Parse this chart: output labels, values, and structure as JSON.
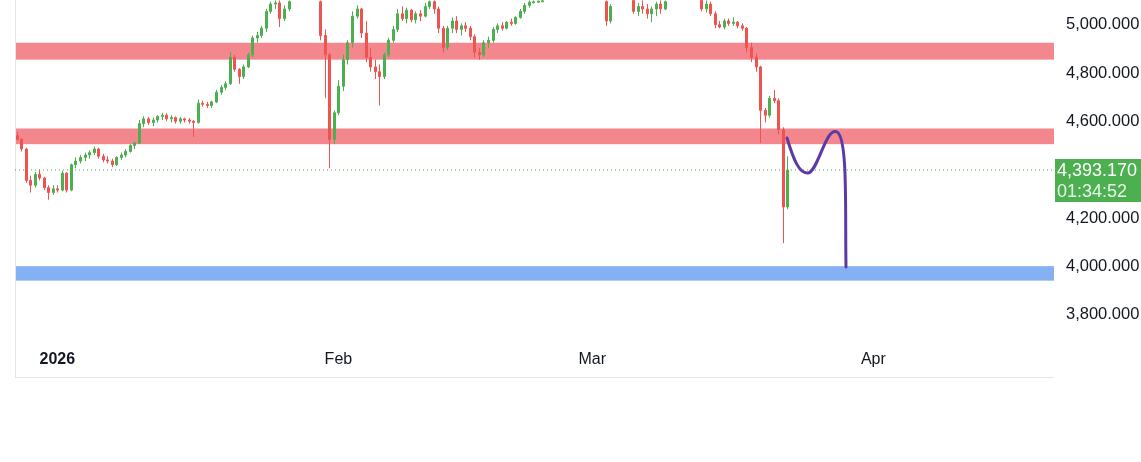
{
  "chart_data": {
    "type": "candlestick",
    "x": [
      "2025-12-27T12:00",
      "2025-12-28T00:00",
      "2025-12-28T12:00",
      "2025-12-29T00:00",
      "2025-12-29T12:00",
      "2025-12-30T00:00",
      "2025-12-30T12:00",
      "2025-12-31T00:00",
      "2025-12-31T12:00",
      "2026-01-01T00:00",
      "2026-01-01T12:00",
      "2026-01-02T00:00",
      "2026-01-02T12:00",
      "2026-01-03T00:00",
      "2026-01-03T12:00",
      "2026-01-04T00:00",
      "2026-01-04T12:00",
      "2026-01-05T00:00",
      "2026-01-05T12:00",
      "2026-01-06T00:00",
      "2026-01-06T12:00",
      "2026-01-07T00:00",
      "2026-01-07T12:00",
      "2026-01-08T00:00",
      "2026-01-08T12:00",
      "2026-01-09T00:00",
      "2026-01-09T12:00",
      "2026-01-10T00:00",
      "2026-01-10T12:00",
      "2026-01-11T00:00",
      "2026-01-11T12:00",
      "2026-01-12T00:00",
      "2026-01-12T12:00",
      "2026-01-13T00:00",
      "2026-01-13T12:00",
      "2026-01-14T00:00",
      "2026-01-14T12:00",
      "2026-01-15T00:00",
      "2026-01-15T12:00",
      "2026-01-16T00:00",
      "2026-01-16T12:00",
      "2026-01-17T00:00",
      "2026-01-17T12:00",
      "2026-01-18T00:00",
      "2026-01-18T12:00",
      "2026-01-19T00:00",
      "2026-01-19T12:00",
      "2026-01-20T00:00",
      "2026-01-20T12:00",
      "2026-01-21T00:00",
      "2026-01-21T12:00",
      "2026-01-22T00:00",
      "2026-01-22T12:00",
      "2026-01-23T00:00",
      "2026-01-23T12:00",
      "2026-01-24T00:00",
      "2026-01-24T12:00",
      "2026-01-25T00:00",
      "2026-01-25T12:00",
      "2026-01-26T00:00",
      "2026-01-26T12:00",
      "2026-01-30T00:00",
      "2026-01-30T12:00",
      "2026-01-31T00:00",
      "2026-01-31T12:00",
      "2026-02-01T00:00",
      "2026-02-01T12:00",
      "2026-02-02T00:00",
      "2026-02-02T12:00",
      "2026-02-03T00:00",
      "2026-02-03T12:00",
      "2026-02-04T00:00",
      "2026-02-04T12:00",
      "2026-02-05T00:00",
      "2026-02-05T12:00",
      "2026-02-06T00:00",
      "2026-02-06T12:00",
      "2026-02-07T00:00",
      "2026-02-07T12:00",
      "2026-02-08T00:00",
      "2026-02-08T12:00",
      "2026-02-09T00:00",
      "2026-02-09T12:00",
      "2026-02-10T00:00",
      "2026-02-10T12:00",
      "2026-02-11T00:00",
      "2026-02-11T12:00",
      "2026-02-12T00:00",
      "2026-02-12T12:00",
      "2026-02-13T00:00",
      "2026-02-13T12:00",
      "2026-02-14T00:00",
      "2026-02-14T12:00",
      "2026-02-15T00:00",
      "2026-02-15T12:00",
      "2026-02-16T00:00",
      "2026-02-16T12:00",
      "2026-02-17T00:00",
      "2026-02-17T12:00",
      "2026-02-18T00:00",
      "2026-02-18T12:00",
      "2026-02-19T00:00",
      "2026-02-19T12:00",
      "2026-02-20T00:00",
      "2026-02-20T12:00",
      "2026-02-21T00:00",
      "2026-02-21T12:00",
      "2026-02-22T00:00",
      "2026-02-22T12:00",
      "2026-02-23T00:00",
      "2026-02-23T12:00",
      "2026-03-02T12:00",
      "2026-03-03T00:00",
      "2026-03-05T12:00",
      "2026-03-06T00:00",
      "2026-03-06T12:00",
      "2026-03-07T00:00",
      "2026-03-07T12:00",
      "2026-03-08T00:00",
      "2026-03-08T12:00",
      "2026-03-09T00:00",
      "2026-03-13T00:00",
      "2026-03-13T12:00",
      "2026-03-14T00:00",
      "2026-03-14T12:00",
      "2026-03-15T00:00",
      "2026-03-15T12:00",
      "2026-03-16T00:00",
      "2026-03-16T12:00",
      "2026-03-17T00:00",
      "2026-03-17T12:00",
      "2026-03-18T00:00",
      "2026-03-18T12:00",
      "2026-03-19T00:00",
      "2026-03-19T12:00",
      "2026-03-20T00:00",
      "2026-03-20T12:00",
      "2026-03-21T00:00",
      "2026-03-21T12:00",
      "2026-03-22T00:00",
      "2026-03-22T12:00"
    ],
    "ohlc": [
      [
        4535,
        4550,
        4515,
        4520
      ],
      [
        4520,
        4525,
        4470,
        4480
      ],
      [
        4480,
        4485,
        4340,
        4350
      ],
      [
        4350,
        4370,
        4300,
        4330
      ],
      [
        4330,
        4385,
        4320,
        4375
      ],
      [
        4375,
        4395,
        4350,
        4360
      ],
      [
        4360,
        4365,
        4310,
        4320
      ],
      [
        4320,
        4330,
        4270,
        4300
      ],
      [
        4300,
        4330,
        4290,
        4315
      ],
      [
        4315,
        4330,
        4300,
        4310
      ],
      [
        4310,
        4390,
        4305,
        4380
      ],
      [
        4380,
        4385,
        4300,
        4310
      ],
      [
        4310,
        4420,
        4305,
        4415
      ],
      [
        4415,
        4445,
        4400,
        4430
      ],
      [
        4430,
        4455,
        4420,
        4445
      ],
      [
        4445,
        4465,
        4430,
        4455
      ],
      [
        4455,
        4475,
        4440,
        4465
      ],
      [
        4465,
        4490,
        4455,
        4480
      ],
      [
        4480,
        4485,
        4440,
        4450
      ],
      [
        4450,
        4460,
        4425,
        4435
      ],
      [
        4435,
        4450,
        4420,
        4430
      ],
      [
        4430,
        4440,
        4405,
        4415
      ],
      [
        4415,
        4450,
        4410,
        4445
      ],
      [
        4445,
        4465,
        4435,
        4455
      ],
      [
        4455,
        4480,
        4445,
        4470
      ],
      [
        4470,
        4500,
        4465,
        4495
      ],
      [
        4495,
        4510,
        4480,
        4505
      ],
      [
        4505,
        4600,
        4500,
        4585
      ],
      [
        4585,
        4615,
        4570,
        4605
      ],
      [
        4605,
        4612,
        4580,
        4590
      ],
      [
        4590,
        4610,
        4575,
        4600
      ],
      [
        4600,
        4620,
        4590,
        4615
      ],
      [
        4615,
        4630,
        4600,
        4620
      ],
      [
        4620,
        4628,
        4595,
        4605
      ],
      [
        4605,
        4620,
        4590,
        4610
      ],
      [
        4610,
        4615,
        4585,
        4595
      ],
      [
        4595,
        4612,
        4585,
        4605
      ],
      [
        4605,
        4610,
        4590,
        4600
      ],
      [
        4600,
        4608,
        4585,
        4595
      ],
      [
        4595,
        4600,
        4530,
        4590
      ],
      [
        4590,
        4685,
        4585,
        4670
      ],
      [
        4670,
        4680,
        4655,
        4665
      ],
      [
        4665,
        4675,
        4650,
        4660
      ],
      [
        4660,
        4680,
        4650,
        4675
      ],
      [
        4675,
        4725,
        4670,
        4715
      ],
      [
        4715,
        4745,
        4705,
        4735
      ],
      [
        4735,
        4760,
        4725,
        4750
      ],
      [
        4750,
        4880,
        4745,
        4860
      ],
      [
        4860,
        4870,
        4800,
        4810
      ],
      [
        4810,
        4815,
        4750,
        4780
      ],
      [
        4780,
        4830,
        4770,
        4820
      ],
      [
        4820,
        4880,
        4815,
        4870
      ],
      [
        4870,
        4950,
        4860,
        4940
      ],
      [
        4940,
        4965,
        4920,
        4950
      ],
      [
        4950,
        4990,
        4940,
        4980
      ],
      [
        4980,
        5060,
        4965,
        5050
      ],
      [
        5050,
        5090,
        5040,
        5080
      ],
      [
        5080,
        5095,
        5060,
        5085
      ],
      [
        5085,
        5095,
        4985,
        5020
      ],
      [
        5020,
        5075,
        5010,
        5060
      ],
      [
        5060,
        5095,
        5050,
        5090
      ],
      [
        5090,
        5095,
        4930,
        4950
      ],
      [
        4950,
        4975,
        4690,
        4870
      ],
      [
        4870,
        4880,
        4400,
        4520
      ],
      [
        4520,
        4640,
        4500,
        4630
      ],
      [
        4630,
        4765,
        4620,
        4740
      ],
      [
        4740,
        4870,
        4720,
        4850
      ],
      [
        4850,
        4930,
        4830,
        4920
      ],
      [
        4920,
        5050,
        4900,
        5030
      ],
      [
        5030,
        5075,
        5020,
        5060
      ],
      [
        5060,
        5065,
        4940,
        4960
      ],
      [
        4960,
        5010,
        4840,
        4860
      ],
      [
        4860,
        4900,
        4800,
        4820
      ],
      [
        4820,
        4850,
        4770,
        4800
      ],
      [
        4800,
        4830,
        4660,
        4780
      ],
      [
        4780,
        4880,
        4770,
        4870
      ],
      [
        4870,
        4940,
        4860,
        4930
      ],
      [
        4930,
        4990,
        4920,
        4975
      ],
      [
        4975,
        5060,
        4965,
        5040
      ],
      [
        5040,
        5070,
        5010,
        5020
      ],
      [
        5020,
        5065,
        5000,
        5055
      ],
      [
        5055,
        5060,
        5005,
        5015
      ],
      [
        5015,
        5050,
        5000,
        5040
      ],
      [
        5040,
        5055,
        5010,
        5030
      ],
      [
        5030,
        5085,
        5025,
        5070
      ],
      [
        5070,
        5095,
        5060,
        5090
      ],
      [
        5090,
        5095,
        5040,
        5060
      ],
      [
        5060,
        5070,
        4960,
        4980
      ],
      [
        4980,
        4990,
        4880,
        4900
      ],
      [
        4900,
        4990,
        4890,
        4980
      ],
      [
        4980,
        5025,
        4960,
        5010
      ],
      [
        5010,
        5030,
        4960,
        4975
      ],
      [
        4975,
        5000,
        4950,
        4990
      ],
      [
        4990,
        5005,
        4965,
        4980
      ],
      [
        4980,
        4990,
        4930,
        4945
      ],
      [
        4945,
        4955,
        4860,
        4880
      ],
      [
        4880,
        4900,
        4850,
        4870
      ],
      [
        4870,
        4930,
        4860,
        4920
      ],
      [
        4920,
        4945,
        4900,
        4930
      ],
      [
        4930,
        4985,
        4920,
        4975
      ],
      [
        4975,
        5000,
        4960,
        4990
      ],
      [
        4990,
        5005,
        4970,
        4980
      ],
      [
        4980,
        5010,
        4975,
        5005
      ],
      [
        5005,
        5020,
        4990,
        5000
      ],
      [
        5000,
        5030,
        4995,
        5025
      ],
      [
        5025,
        5060,
        5020,
        5050
      ],
      [
        5050,
        5085,
        5040,
        5075
      ],
      [
        5075,
        5095,
        5065,
        5088
      ],
      [
        5088,
        5095,
        5082,
        5090
      ],
      [
        5090,
        5095,
        5085,
        5092
      ],
      [
        5092,
        5095,
        5088,
        5094
      ],
      [
        5090,
        5095,
        4990,
        5010
      ],
      [
        5010,
        5080,
        5000,
        5070
      ],
      [
        5095,
        5095,
        5040,
        5050
      ],
      [
        5050,
        5085,
        5030,
        5070
      ],
      [
        5070,
        5095,
        5040,
        5060
      ],
      [
        5060,
        5080,
        5020,
        5040
      ],
      [
        5040,
        5070,
        5005,
        5060
      ],
      [
        5060,
        5090,
        5030,
        5080
      ],
      [
        5080,
        5095,
        5040,
        5060
      ],
      [
        5060,
        5095,
        5055,
        5090
      ],
      [
        5095,
        5095,
        5050,
        5060
      ],
      [
        5060,
        5095,
        5045,
        5080
      ],
      [
        5080,
        5090,
        5030,
        5040
      ],
      [
        5040,
        5050,
        4980,
        4995
      ],
      [
        4995,
        5010,
        4980,
        4985
      ],
      [
        4985,
        5020,
        4975,
        5010
      ],
      [
        5010,
        5020,
        4990,
        5000
      ],
      [
        5000,
        5025,
        4990,
        5005
      ],
      [
        5005,
        5010,
        4980,
        4990
      ],
      [
        4990,
        5000,
        4970,
        4980
      ],
      [
        4980,
        4985,
        4880,
        4900
      ],
      [
        4900,
        4920,
        4840,
        4860
      ],
      [
        4860,
        4875,
        4800,
        4820
      ],
      [
        4820,
        4825,
        4505,
        4640
      ],
      [
        4640,
        4650,
        4590,
        4620
      ],
      [
        4620,
        4700,
        4610,
        4690
      ],
      [
        4690,
        4725,
        4670,
        4680
      ],
      [
        4680,
        4690,
        4540,
        4560
      ],
      [
        4560,
        4570,
        4090,
        4240
      ],
      [
        4240,
        4450,
        4230,
        4393.17
      ]
    ],
    "colors": [
      "#ef5350",
      "#ef5350",
      "#ef5350",
      "#ef5350",
      "#4caf50",
      "#ef5350",
      "#ef5350",
      "#ef5350",
      "#4caf50",
      "#ef5350",
      "#4caf50",
      "#ef5350",
      "#4caf50",
      "#4caf50",
      "#4caf50",
      "#4caf50",
      "#4caf50",
      "#4caf50",
      "#ef5350",
      "#ef5350",
      "#ef5350",
      "#ef5350",
      "#4caf50",
      "#4caf50",
      "#4caf50",
      "#4caf50",
      "#4caf50",
      "#4caf50",
      "#4caf50",
      "#ef5350",
      "#4caf50",
      "#4caf50",
      "#4caf50",
      "#ef5350",
      "#4caf50",
      "#ef5350",
      "#4caf50",
      "#ef5350",
      "#ef5350",
      "#ef5350",
      "#4caf50",
      "#ef5350",
      "#ef5350",
      "#4caf50",
      "#4caf50",
      "#4caf50",
      "#4caf50",
      "#4caf50",
      "#ef5350",
      "#ef5350",
      "#4caf50",
      "#4caf50",
      "#4caf50",
      "#4caf50",
      "#4caf50",
      "#4caf50",
      "#4caf50",
      "#4caf50",
      "#ef5350",
      "#4caf50",
      "#4caf50",
      "#ef5350",
      "#ef5350",
      "#ef5350",
      "#4caf50",
      "#4caf50",
      "#4caf50",
      "#4caf50",
      "#4caf50",
      "#4caf50",
      "#ef5350",
      "#ef5350",
      "#ef5350",
      "#ef5350",
      "#ef5350",
      "#4caf50",
      "#4caf50",
      "#4caf50",
      "#4caf50",
      "#ef5350",
      "#4caf50",
      "#ef5350",
      "#4caf50",
      "#ef5350",
      "#4caf50",
      "#4caf50",
      "#ef5350",
      "#ef5350",
      "#ef5350",
      "#4caf50",
      "#4caf50",
      "#ef5350",
      "#4caf50",
      "#ef5350",
      "#ef5350",
      "#ef5350",
      "#ef5350",
      "#4caf50",
      "#4caf50",
      "#4caf50",
      "#4caf50",
      "#ef5350",
      "#4caf50",
      "#ef5350",
      "#4caf50",
      "#4caf50",
      "#4caf50",
      "#4caf50",
      "#4caf50",
      "#4caf50",
      "#4caf50",
      "#ef5350",
      "#4caf50",
      "#ef5350",
      "#4caf50",
      "#ef5350",
      "#ef5350",
      "#4caf50",
      "#4caf50",
      "#ef5350",
      "#4caf50",
      "#ef5350",
      "#4caf50",
      "#ef5350",
      "#ef5350",
      "#ef5350",
      "#4caf50",
      "#ef5350",
      "#4caf50",
      "#ef5350",
      "#ef5350",
      "#ef5350",
      "#ef5350",
      "#ef5350",
      "#ef5350",
      "#ef5350",
      "#4caf50",
      "#ef5350",
      "#ef5350",
      "#ef5350",
      "#4caf50"
    ],
    "xlim": [
      "2025-12-27T08:00",
      "2026-04-20T22:00"
    ],
    "ylim": [
      3536,
      5097
    ],
    "xticks": [
      {
        "value": "2026-01-01",
        "label": "2026"
      },
      {
        "value": "2026-02-01",
        "label": "Feb"
      },
      {
        "value": "2026-03-01",
        "label": "Mar"
      },
      {
        "value": "2026-04-01",
        "label": "Apr"
      }
    ],
    "yticks": [
      {
        "value": 3800,
        "label": "3,800.000"
      },
      {
        "value": 4000,
        "label": "4,000.000"
      },
      {
        "value": 4200,
        "label": "4,200.000"
      },
      {
        "value": 4600,
        "label": "4,600.000"
      },
      {
        "value": 4800,
        "label": "4,800.000"
      },
      {
        "value": 5000,
        "label": "5,000.000"
      }
    ],
    "bands": [
      {
        "axis": "y",
        "from": 4850,
        "to": 4920,
        "color": "#f4878d"
      },
      {
        "axis": "y",
        "from": 4500,
        "to": 4565,
        "color": "#f4878d"
      },
      {
        "axis": "y",
        "from": 3935,
        "to": 3995,
        "color": "#86b0f4"
      }
    ],
    "ref_lines": [
      {
        "axis": "y",
        "value": 4393.17,
        "label": "4,393.170",
        "color": "#4caf50",
        "line_style": "dotted"
      }
    ],
    "annotations": [
      "01:34:52"
    ]
  }
}
